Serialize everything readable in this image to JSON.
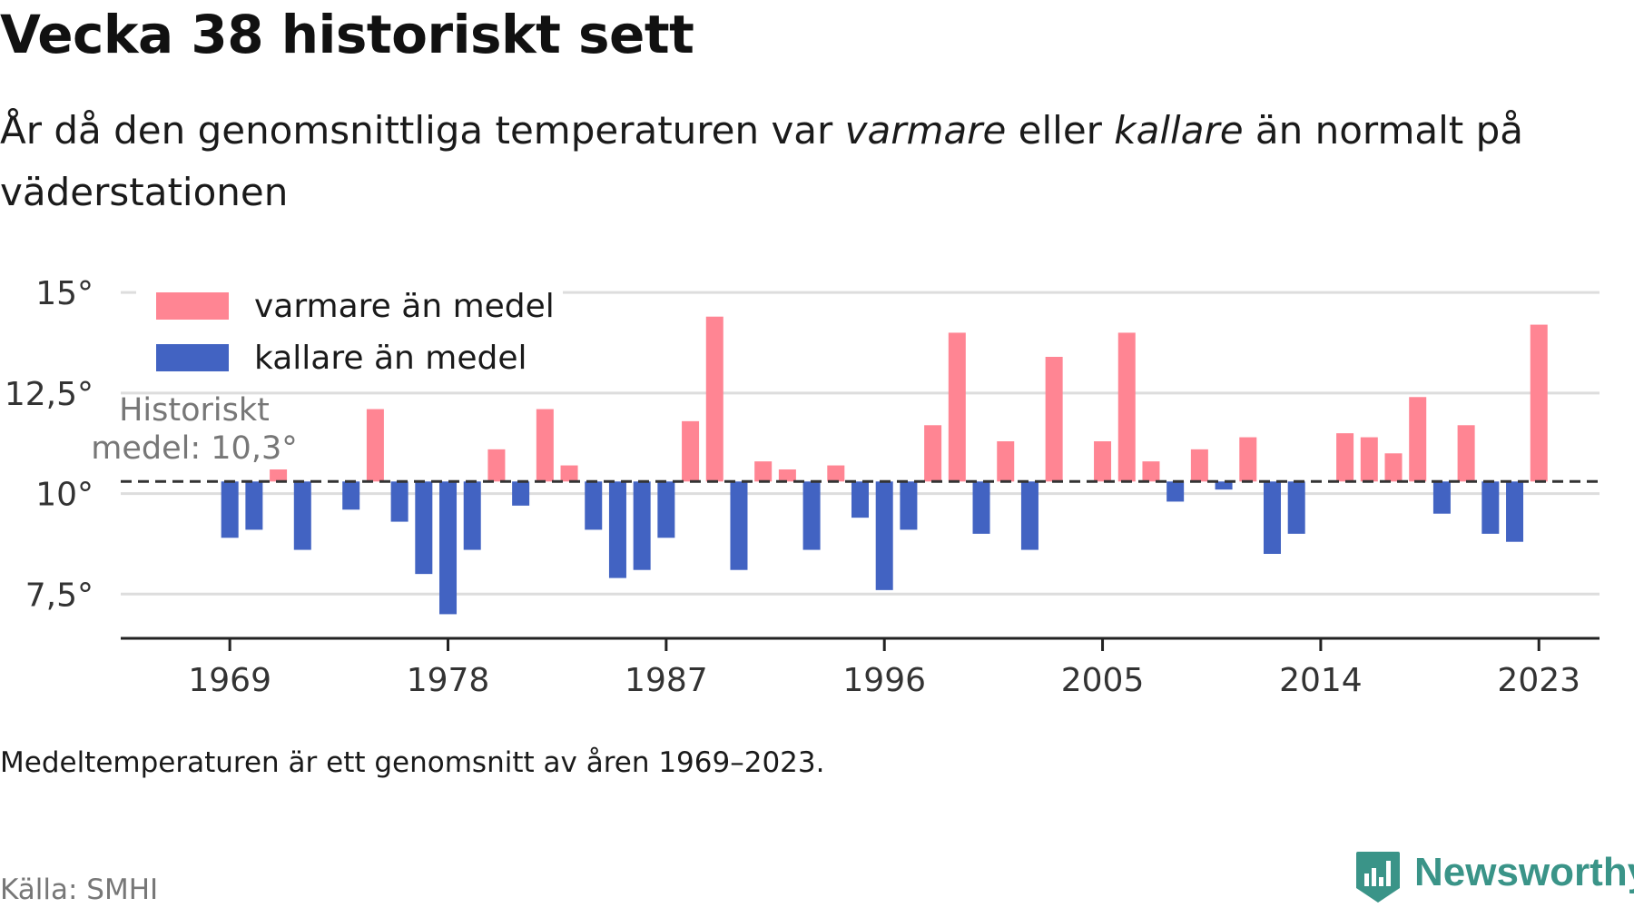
{
  "title": "Vecka 38 historiskt sett",
  "subtitle": {
    "part1": "År då den genomsnittliga temperaturen var ",
    "warmer_word": "varmare",
    "part2": " eller ",
    "colder_word": "kallare",
    "part3": " än normalt på väderstationen"
  },
  "footnote": "Medeltemperaturen är ett genomsnitt av åren 1969–2023.",
  "source": "Källa: SMHI",
  "brand": {
    "name": "Newsworthy",
    "icon": "newsworthy-logo-icon",
    "color": "#3a9488"
  },
  "chart_data": {
    "type": "bar",
    "mean": 10.3,
    "mean_label_line1": "Historiskt",
    "mean_label_line2": "medel: 10,3°",
    "ylim": [
      6.4,
      15.5
    ],
    "xlim": [
      1964.5,
      2025.5
    ],
    "y_ticks": [
      {
        "value": 7.5,
        "label": "7,5°"
      },
      {
        "value": 10,
        "label": "10°"
      },
      {
        "value": 12.5,
        "label": "12,5°"
      },
      {
        "value": 15,
        "label": "15°"
      }
    ],
    "x_ticks": [
      {
        "value": 1969,
        "label": "1969"
      },
      {
        "value": 1978,
        "label": "1978"
      },
      {
        "value": 1987,
        "label": "1987"
      },
      {
        "value": 1996,
        "label": "1996"
      },
      {
        "value": 2005,
        "label": "2005"
      },
      {
        "value": 2014,
        "label": "2014"
      },
      {
        "value": 2023,
        "label": "2023"
      }
    ],
    "legend": [
      {
        "label": "varmare än medel",
        "color": "#ff8593"
      },
      {
        "label": "kallare än medel",
        "color": "#4263c2"
      }
    ],
    "colors": {
      "warmer": "#ff8593",
      "colder": "#4263c2",
      "mean_line": "#333333",
      "grid": "#dddddd",
      "axis": "#222222",
      "mean_label": "#777777"
    },
    "years": [
      1969,
      1970,
      1971,
      1972,
      1973,
      1974,
      1975,
      1976,
      1977,
      1978,
      1979,
      1980,
      1981,
      1982,
      1983,
      1984,
      1985,
      1986,
      1987,
      1988,
      1989,
      1990,
      1991,
      1992,
      1993,
      1994,
      1995,
      1996,
      1997,
      1998,
      1999,
      2000,
      2001,
      2002,
      2003,
      2004,
      2005,
      2006,
      2007,
      2008,
      2009,
      2010,
      2011,
      2012,
      2013,
      2014,
      2015,
      2016,
      2017,
      2018,
      2019,
      2020,
      2021,
      2022,
      2023
    ],
    "values": [
      8.9,
      9.1,
      10.6,
      8.6,
      null,
      9.6,
      12.1,
      9.3,
      8.0,
      7.0,
      8.6,
      11.1,
      9.7,
      12.1,
      10.7,
      9.1,
      7.9,
      8.1,
      8.9,
      11.8,
      14.4,
      8.1,
      10.8,
      10.6,
      8.6,
      10.7,
      9.4,
      7.6,
      9.1,
      11.7,
      14.0,
      9.0,
      11.3,
      8.6,
      13.4,
      null,
      11.3,
      14.0,
      10.8,
      9.8,
      11.1,
      10.1,
      11.4,
      8.5,
      9.0,
      null,
      11.5,
      11.4,
      11.0,
      12.4,
      9.5,
      11.7,
      9.0,
      8.8,
      14.2
    ]
  }
}
